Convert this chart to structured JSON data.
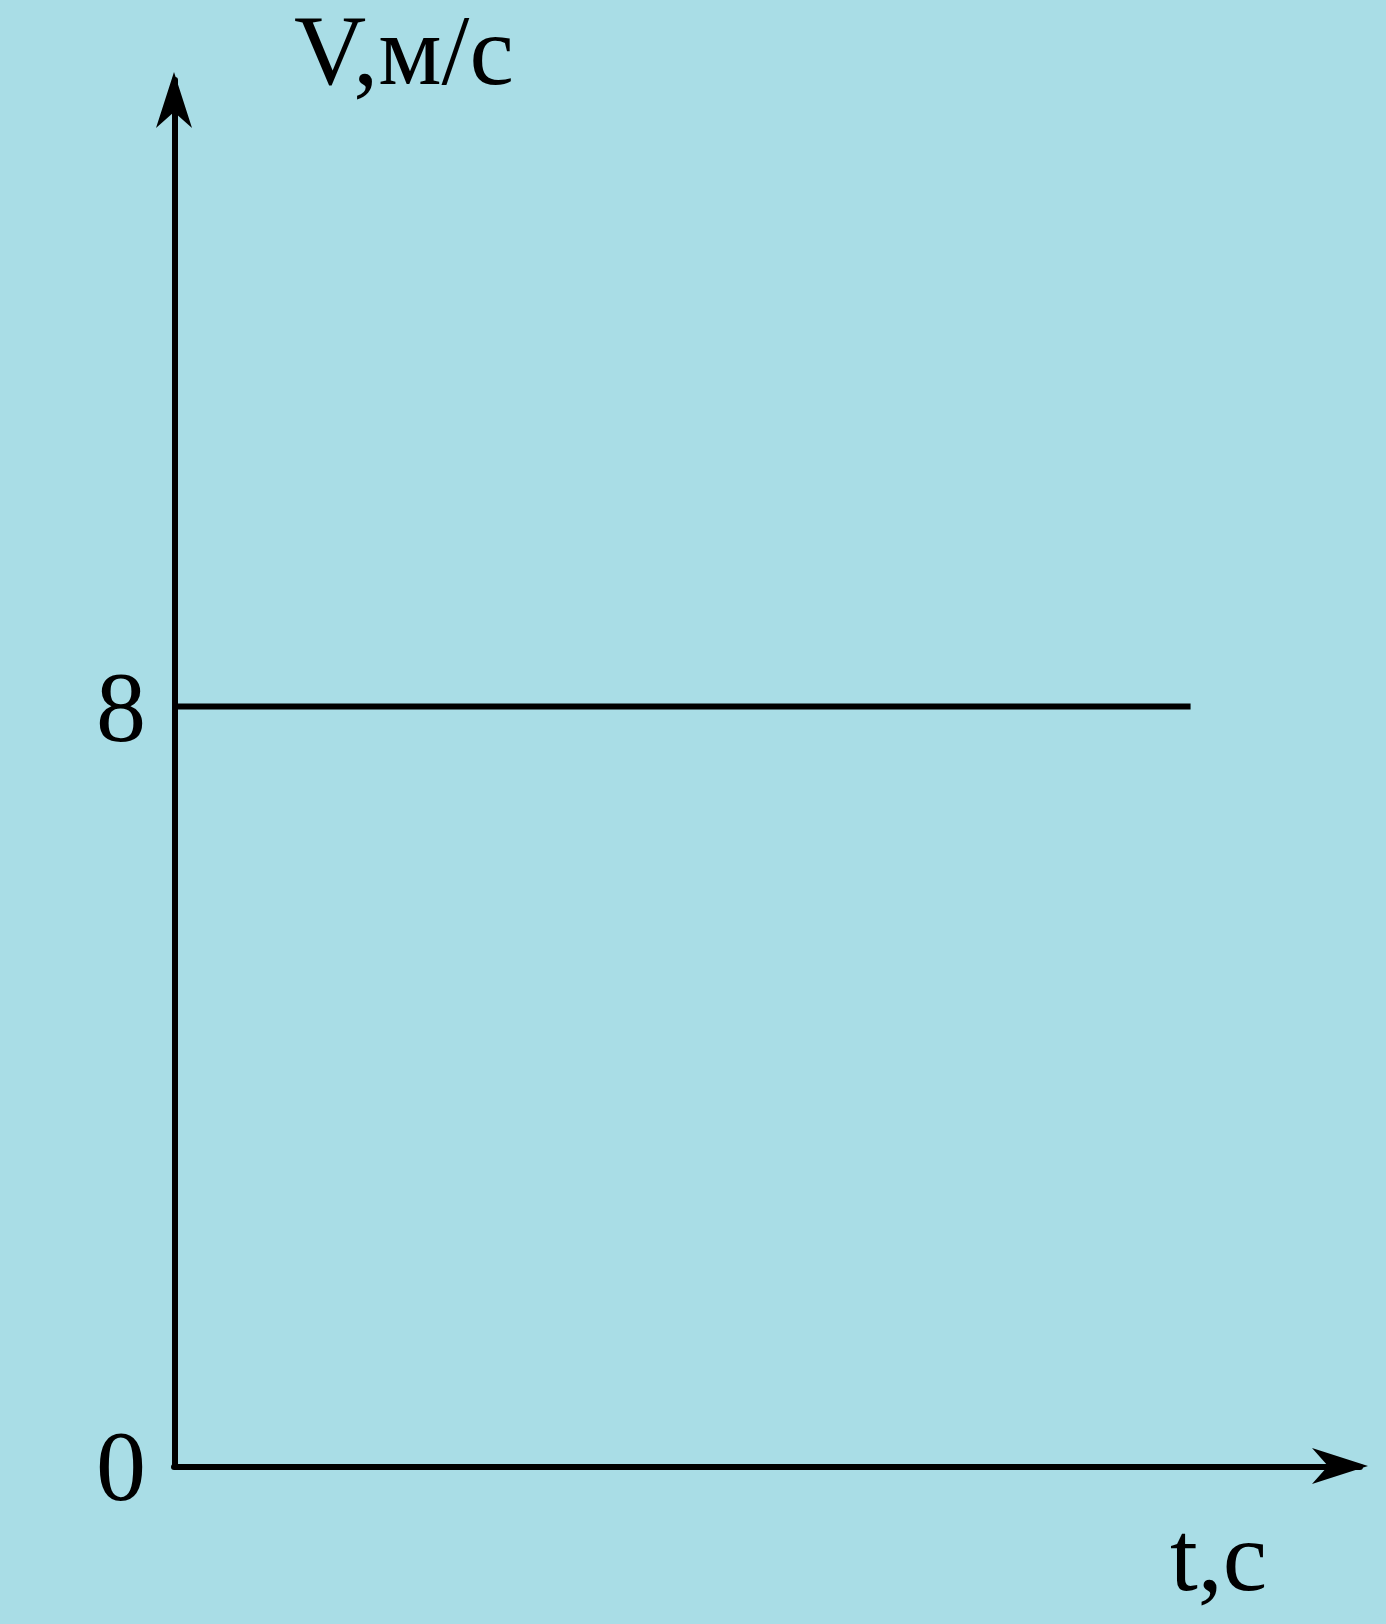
{
  "chart_data": {
    "type": "line",
    "xlabel": "t,c",
    "ylabel": "V,м/с",
    "categories": [
      null,
      null,
      null,
      null,
      null,
      null,
      null,
      null
    ],
    "series": [
      {
        "color": "#000000",
        "values": [
          8,
          8,
          8,
          8,
          8,
          8,
          8,
          null
        ]
      }
    ],
    "ylim": [
      0,
      14.6
    ],
    "yticks": [
      0,
      8
    ],
    "grid": false,
    "marker": "none",
    "line_style": "solid"
  }
}
